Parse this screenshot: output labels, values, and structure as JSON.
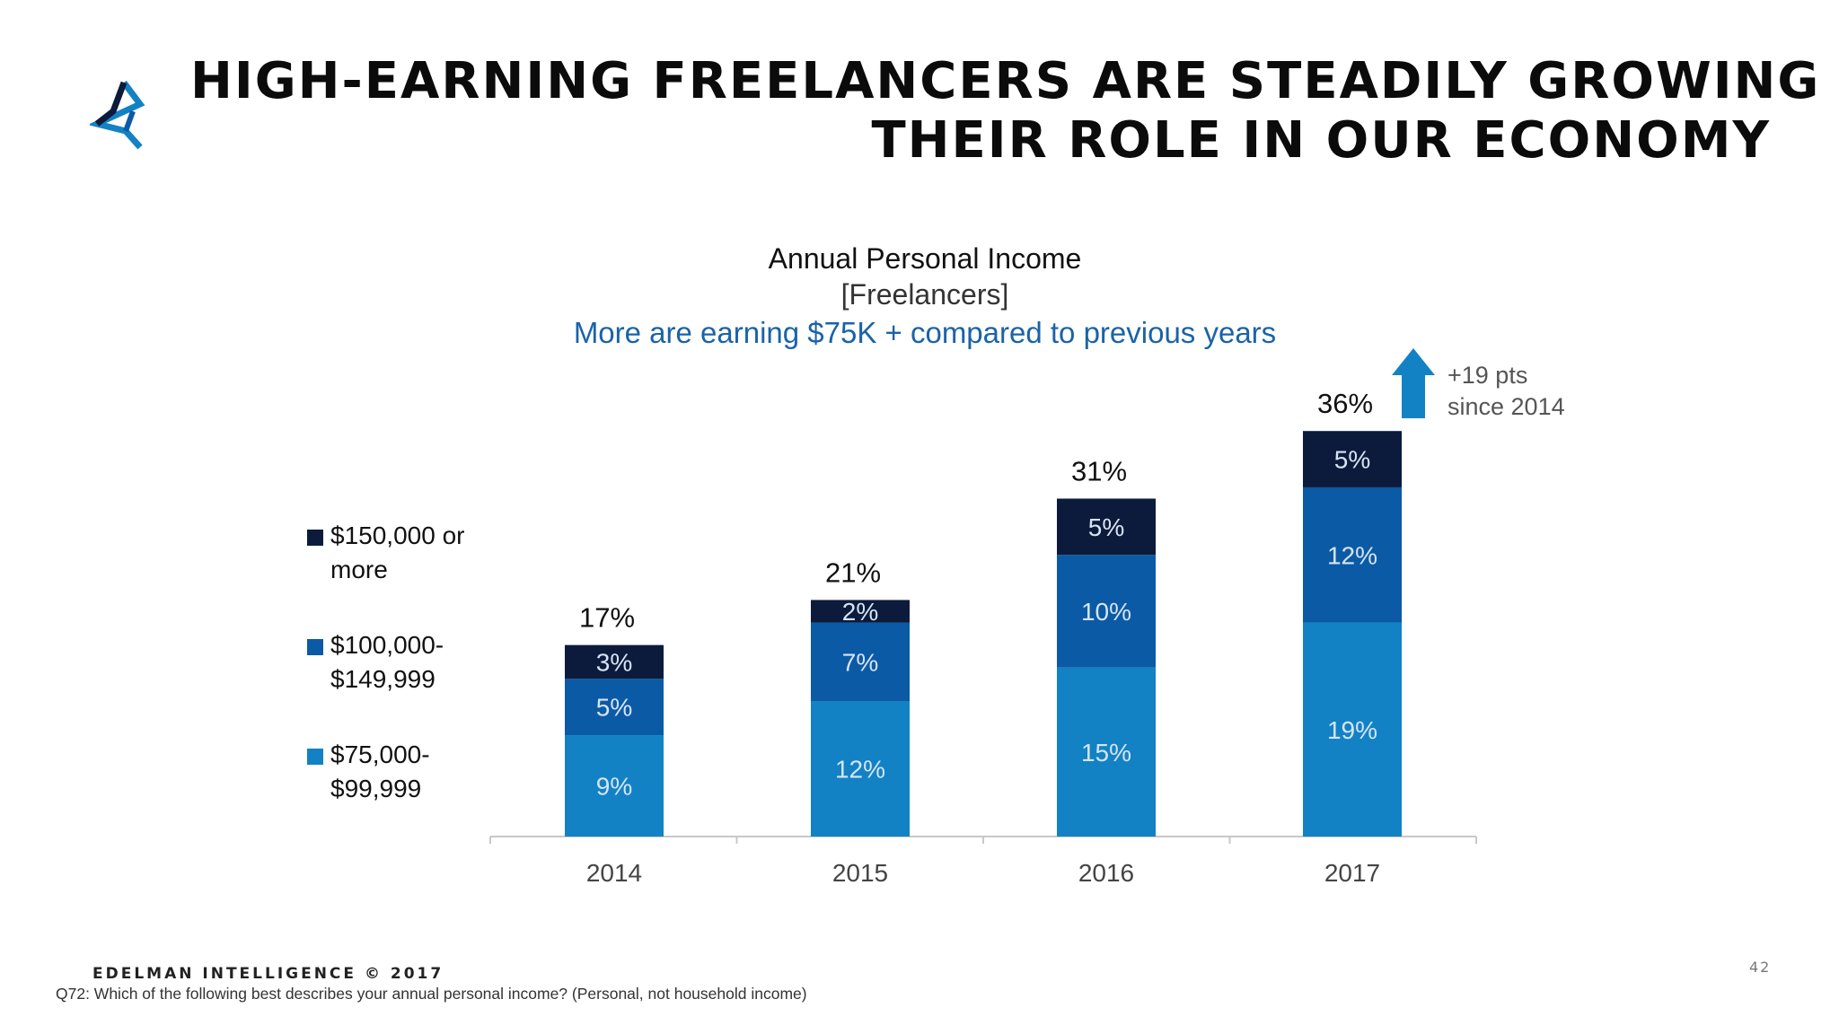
{
  "header": {
    "title_line1": "HIGH-EARNING FREELANCERS ARE STEADILY GROWING",
    "title_line2": "THEIR ROLE IN OUR ECONOMY"
  },
  "chart_data": {
    "type": "bar",
    "stacked": true,
    "title": "Annual Personal Income",
    "subtitle": "[Freelancers]",
    "note": "More are earning $75K + compared to previous years",
    "categories": [
      "2014",
      "2015",
      "2016",
      "2017"
    ],
    "series": [
      {
        "name": "$75,000-\n$99,999",
        "values": [
          9,
          12,
          15,
          19
        ],
        "color": "#1282c5"
      },
      {
        "name": "$100,000-\n$149,999",
        "values": [
          5,
          7,
          10,
          12
        ],
        "color": "#0b5aa6"
      },
      {
        "name": "$150,000 or\nmore",
        "values": [
          3,
          2,
          5,
          5
        ],
        "color": "#0c1b3c"
      }
    ],
    "value_labels": [
      [
        "9%",
        "12%",
        "15%",
        "19%"
      ],
      [
        "5%",
        "7%",
        "10%",
        "12%"
      ],
      [
        "3%",
        "2%",
        "5%",
        "5%"
      ]
    ],
    "totals": [
      "17%",
      "21%",
      "31%",
      "36%"
    ],
    "callout": {
      "line1": "+19 pts",
      "line2": "since 2014",
      "arrow_color": "#1282c5"
    },
    "ylim": [
      0,
      40
    ],
    "grid": false,
    "legend": "left"
  },
  "footer": {
    "brand": "EDELMAN INTELLIGENCE © 2017",
    "question": "Q72: Which of the following best describes your annual personal income? (Personal, not household income)",
    "page_number": "42"
  }
}
